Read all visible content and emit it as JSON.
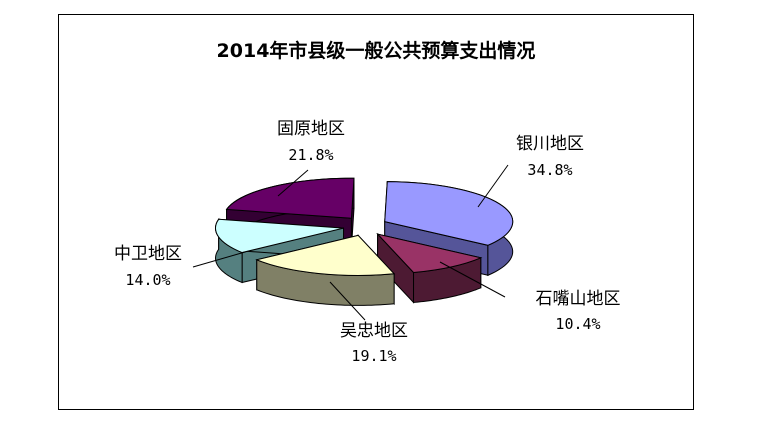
{
  "chart_data": {
    "type": "pie",
    "title": "2014年市县级一般公共预算支出情况",
    "slices": [
      {
        "name": "银川地区",
        "value": 34.8,
        "value_label": "34.8%",
        "color": "#9999ff",
        "side_color": "#555599"
      },
      {
        "name": "石嘴山地区",
        "value": 10.4,
        "value_label": "10.4%",
        "color": "#993366",
        "side_color": "#4d1a33"
      },
      {
        "name": "吴忠地区",
        "value": 19.1,
        "value_label": "19.1%",
        "color": "#ffffcc",
        "side_color": "#808066"
      },
      {
        "name": "中卫地区",
        "value": 14.0,
        "value_label": "14.0%",
        "color": "#ccffff",
        "side_color": "#558080"
      },
      {
        "name": "固原地区",
        "value": 21.8,
        "value_label": "21.8%",
        "color": "#660066",
        "side_color": "#330033"
      }
    ],
    "exploded": true,
    "three_d": true
  }
}
